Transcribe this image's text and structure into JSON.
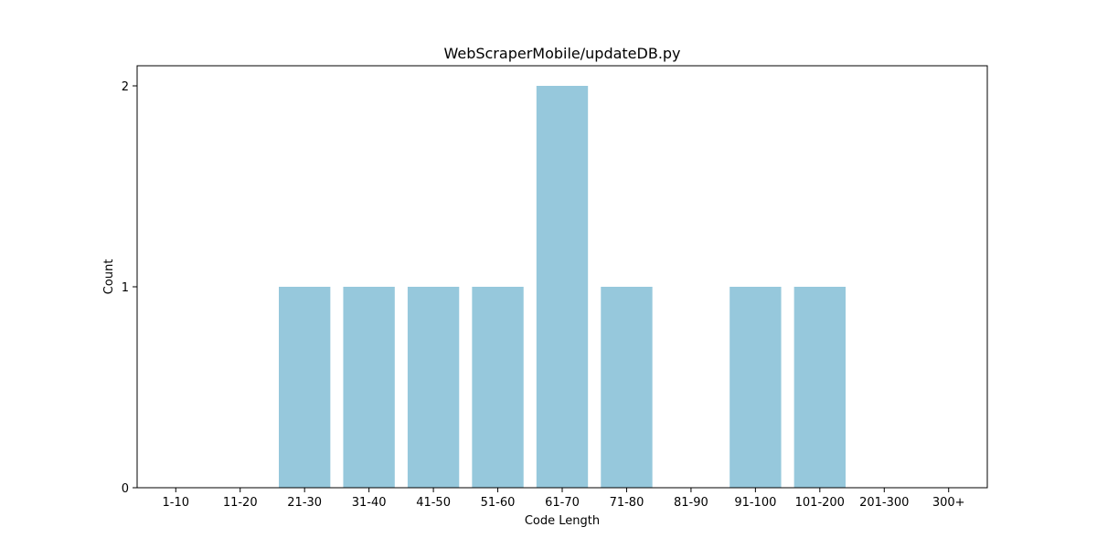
{
  "chart_data": {
    "type": "bar",
    "title": "WebScraperMobile/updateDB.py",
    "xlabel": "Code Length",
    "ylabel": "Count",
    "categories": [
      "1-10",
      "11-20",
      "21-30",
      "31-40",
      "41-50",
      "51-60",
      "61-70",
      "71-80",
      "81-90",
      "91-100",
      "101-200",
      "201-300",
      "300+"
    ],
    "values": [
      0,
      0,
      1,
      1,
      1,
      1,
      2,
      1,
      0,
      1,
      1,
      0,
      0
    ],
    "yticks": [
      0,
      1,
      2
    ],
    "ylim": [
      0,
      2.1
    ],
    "bar_color": "#96c8dc",
    "grid": false
  }
}
